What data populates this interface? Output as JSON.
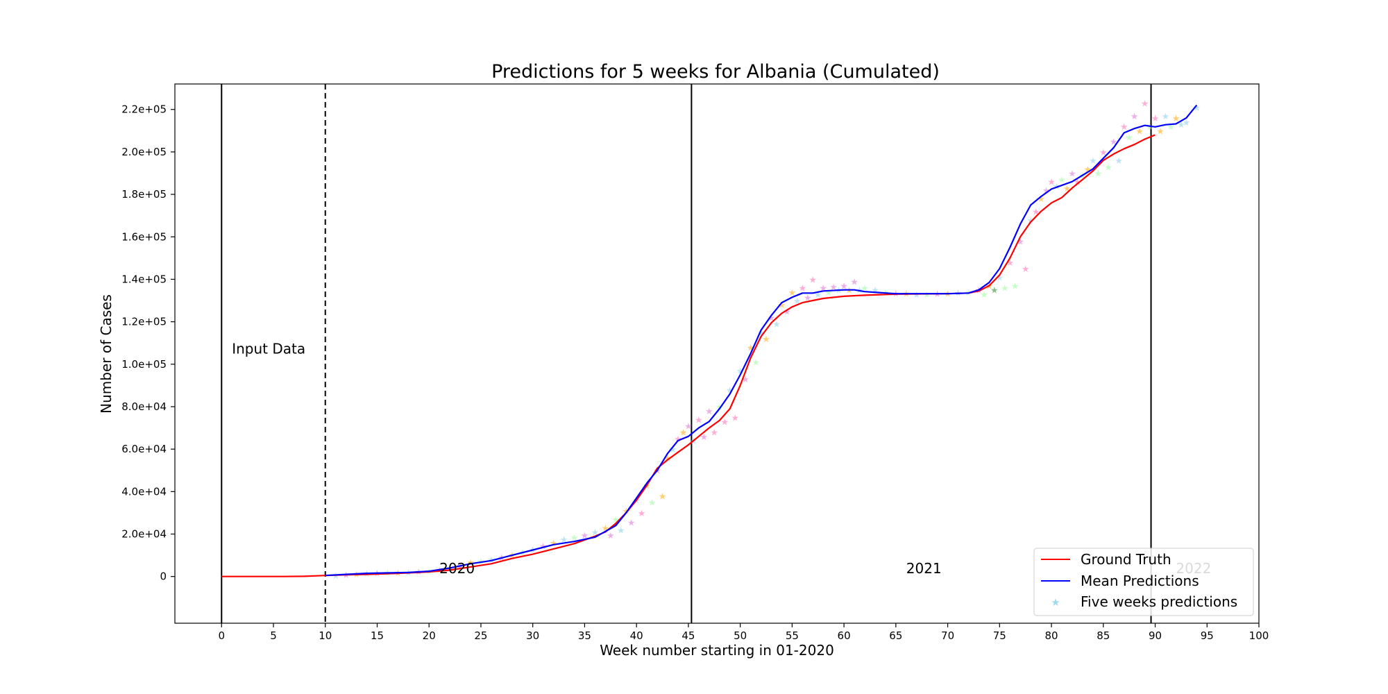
{
  "chart_data": {
    "type": "line",
    "title": "Predictions for 5 weeks for Albania (Cumulated)",
    "xlabel": "Week number starting in 01-2020",
    "ylabel": "Number of Cases",
    "xlim": [
      -4.5,
      100
    ],
    "ylim": [
      -22000,
      232000
    ],
    "x_ticks": [
      0,
      5,
      10,
      15,
      20,
      25,
      30,
      35,
      40,
      45,
      50,
      55,
      60,
      65,
      70,
      75,
      80,
      85,
      90,
      95,
      100
    ],
    "y_ticks": [
      0,
      20000,
      40000,
      60000,
      80000,
      100000,
      120000,
      140000,
      160000,
      180000,
      200000,
      220000
    ],
    "y_tick_labels": [
      "0",
      "2.0e+04",
      "4.0e+04",
      "6.0e+04",
      "8.0e+04",
      "1.0e+05",
      "1.2e+05",
      "1.4e+05",
      "1.6e+05",
      "1.8e+05",
      "2.0e+05",
      "2.2e+05"
    ],
    "grid": false,
    "legend_position": "lower-right",
    "vertical_lines": [
      {
        "x": 0,
        "style": "solid"
      },
      {
        "x": 10,
        "style": "dashed"
      },
      {
        "x": 45.3,
        "style": "solid"
      },
      {
        "x": 89.6,
        "style": "solid"
      }
    ],
    "annotations": [
      {
        "text": "Input Data",
        "x": 1,
        "y": 105000
      },
      {
        "text": "2020",
        "x": 21,
        "y": 1500
      },
      {
        "text": "2021",
        "x": 66,
        "y": 1500
      },
      {
        "text": "2022",
        "x": 92,
        "y": 1500
      }
    ],
    "series": [
      {
        "name": "Ground Truth",
        "color": "#ff0000",
        "x": [
          0,
          2,
          4,
          6,
          8,
          9,
          10,
          12,
          14,
          16,
          18,
          20,
          22,
          24,
          26,
          28,
          30,
          32,
          34,
          36,
          37,
          38,
          39,
          40,
          41,
          42,
          43,
          44,
          45,
          46,
          47,
          48,
          49,
          50,
          51,
          52,
          53,
          54,
          55,
          56,
          57,
          58,
          60,
          62,
          65,
          70,
          72,
          73,
          74,
          75,
          76,
          77,
          78,
          79,
          80,
          81,
          82,
          83,
          84,
          85,
          86,
          87,
          88,
          89,
          90
        ],
        "y": [
          0,
          0,
          0,
          0,
          100,
          300,
          500,
          800,
          1000,
          1300,
          1700,
          2200,
          3000,
          4500,
          6000,
          8500,
          10500,
          13000,
          15500,
          19000,
          21000,
          25000,
          30000,
          36000,
          43000,
          51000,
          55000,
          58500,
          62000,
          66000,
          70000,
          73500,
          79000,
          90000,
          103000,
          113000,
          119500,
          124000,
          127000,
          129000,
          130000,
          131000,
          132000,
          132500,
          133000,
          133200,
          133500,
          134500,
          137000,
          142000,
          150000,
          160000,
          167000,
          172000,
          176000,
          178500,
          183000,
          187000,
          191000,
          196000,
          199000,
          201500,
          203500,
          206000,
          208000
        ]
      },
      {
        "name": "Mean Predictions",
        "color": "#0000ff",
        "x": [
          10,
          12,
          14,
          16,
          18,
          20,
          22,
          24,
          26,
          28,
          30,
          32,
          34,
          36,
          38,
          39,
          40,
          41,
          42,
          43,
          44,
          45,
          46,
          47,
          48,
          49,
          50,
          51,
          52,
          53,
          54,
          55,
          56,
          57,
          58,
          60,
          61,
          62,
          65,
          70,
          72,
          73,
          74,
          75,
          76,
          77,
          78,
          79,
          80,
          82,
          84,
          86,
          87,
          88,
          89,
          90,
          91,
          92,
          93,
          94
        ],
        "y": [
          500,
          1000,
          1500,
          1700,
          1900,
          2500,
          4000,
          6000,
          7500,
          10000,
          12500,
          15000,
          16500,
          18500,
          24000,
          30000,
          37000,
          44000,
          50000,
          58000,
          64000,
          66000,
          70000,
          73000,
          79000,
          86000,
          95000,
          105000,
          116000,
          123000,
          129000,
          131500,
          133500,
          133500,
          134500,
          135000,
          135000,
          134200,
          133200,
          133200,
          133500,
          135000,
          138500,
          145000,
          155000,
          166000,
          175000,
          179000,
          182500,
          186000,
          192000,
          202000,
          209000,
          211000,
          212500,
          211800,
          212800,
          213200,
          216000,
          222000
        ]
      },
      {
        "name": "Five weeks predictions",
        "marker": "star",
        "color": "#87ceeb",
        "points": [
          [
            11,
            600,
            "#87ceeb"
          ],
          [
            12,
            900,
            "#da70d6"
          ],
          [
            13,
            1200,
            "#ffa500"
          ],
          [
            14,
            1500,
            "#87ceeb"
          ],
          [
            15,
            1700,
            "#da70d6"
          ],
          [
            16,
            1900,
            "#98fb98"
          ],
          [
            17,
            1800,
            "#ffa500"
          ],
          [
            18,
            2100,
            "#87ceeb"
          ],
          [
            19,
            2300,
            "#da70d6"
          ],
          [
            20,
            2500,
            "#98fb98"
          ],
          [
            21,
            3200,
            "#ffa500"
          ],
          [
            22,
            4000,
            "#87ceeb"
          ],
          [
            23,
            5200,
            "#da70d6"
          ],
          [
            24,
            6800,
            "#ffa500"
          ],
          [
            25,
            7200,
            "#98fb98"
          ],
          [
            26,
            8000,
            "#87ceeb"
          ],
          [
            27,
            9000,
            "#da70d6"
          ],
          [
            28,
            10200,
            "#ffa500"
          ],
          [
            29,
            11500,
            "#98fb98"
          ],
          [
            30,
            12800,
            "#87ceeb"
          ],
          [
            31,
            14500,
            "#da70d6"
          ],
          [
            32,
            16000,
            "#ffa500"
          ],
          [
            33,
            17500,
            "#87ceeb"
          ],
          [
            34,
            18500,
            "#98fb98"
          ],
          [
            35,
            19500,
            "#da70d6"
          ],
          [
            36,
            21000,
            "#87ceeb"
          ],
          [
            37,
            23000,
            "#ffa500"
          ],
          [
            37.5,
            19500,
            "#da70d6"
          ],
          [
            38,
            27000,
            "#98fb98"
          ],
          [
            38.5,
            22000,
            "#87ceeb"
          ],
          [
            39,
            31000,
            "#ffa500"
          ],
          [
            39.5,
            25500,
            "#da70d6"
          ],
          [
            40,
            36000,
            "#87ceeb"
          ],
          [
            40.5,
            30000,
            "#ff69b4"
          ],
          [
            41,
            43000,
            "#ffa500"
          ],
          [
            41.5,
            35000,
            "#98fb98"
          ],
          [
            42,
            50000,
            "#da70d6"
          ],
          [
            42.5,
            38000,
            "#ffa500"
          ],
          [
            43,
            56000,
            "#ffa500"
          ],
          [
            43.5,
            60000,
            "#87ceeb"
          ],
          [
            44,
            65000,
            "#ff69b4"
          ],
          [
            44.5,
            68000,
            "#ffa500"
          ],
          [
            45,
            71000,
            "#da70d6"
          ],
          [
            45.5,
            64000,
            "#87ceeb"
          ],
          [
            46,
            74000,
            "#ff69b4"
          ],
          [
            46.5,
            66000,
            "#da70d6"
          ],
          [
            47,
            78000,
            "#da70d6"
          ],
          [
            47.5,
            68000,
            "#ff69b4"
          ],
          [
            48,
            80000,
            "#98fb98"
          ],
          [
            48.5,
            73000,
            "#ff69b4"
          ],
          [
            49,
            88000,
            "#87ceeb"
          ],
          [
            49.5,
            75000,
            "#ff69b4"
          ],
          [
            50,
            97000,
            "#87ceeb"
          ],
          [
            50.5,
            93000,
            "#da70d6"
          ],
          [
            51,
            108000,
            "#ffa500"
          ],
          [
            51.5,
            101000,
            "#98fb98"
          ],
          [
            52,
            115000,
            "#87ceeb"
          ],
          [
            52.5,
            112000,
            "#ffa500"
          ],
          [
            53,
            122000,
            "#da70d6"
          ],
          [
            53.5,
            119000,
            "#87ceeb"
          ],
          [
            54,
            128000,
            "#ffa500"
          ],
          [
            54.5,
            125000,
            "#da70d6"
          ],
          [
            55,
            134000,
            "#ffa500"
          ],
          [
            55.5,
            130000,
            "#87ceeb"
          ],
          [
            56,
            136000,
            "#ff69b4"
          ],
          [
            56.5,
            131500,
            "#da70d6"
          ],
          [
            57,
            140000,
            "#ff69b4"
          ],
          [
            57.5,
            133000,
            "#87ceeb"
          ],
          [
            58,
            136000,
            "#da70d6"
          ],
          [
            58.5,
            134000,
            "#98fb98"
          ],
          [
            59,
            136500,
            "#da70d6"
          ],
          [
            59.5,
            135000,
            "#87ceeb"
          ],
          [
            60,
            137000,
            "#da70d6"
          ],
          [
            60.5,
            135000,
            "#ffa500"
          ],
          [
            61,
            139000,
            "#da70d6"
          ],
          [
            61.5,
            135000,
            "#87ceeb"
          ],
          [
            62,
            136000,
            "#98fb98"
          ],
          [
            63,
            135000,
            "#87ceeb"
          ],
          [
            64,
            134000,
            "#98fb98"
          ],
          [
            65,
            133500,
            "#da70d6"
          ],
          [
            66,
            133500,
            "#ffa500"
          ],
          [
            67,
            133000,
            "#87ceeb"
          ],
          [
            68,
            133000,
            "#98fb98"
          ],
          [
            69,
            133300,
            "#da70d6"
          ],
          [
            70,
            133400,
            "#ffa500"
          ],
          [
            71,
            133700,
            "#87ceeb"
          ],
          [
            72,
            134000,
            "#98fb98"
          ],
          [
            73,
            135000,
            "#da70d6"
          ],
          [
            73.5,
            133000,
            "#98fb98"
          ],
          [
            74,
            137000,
            "#ffa500"
          ],
          [
            74.5,
            135000,
            "#228b22"
          ],
          [
            75,
            141000,
            "#87ceeb"
          ],
          [
            75.5,
            136000,
            "#98fb98"
          ],
          [
            76,
            148000,
            "#ff69b4"
          ],
          [
            76.5,
            137000,
            "#98fb98"
          ],
          [
            77,
            158000,
            "#da70d6"
          ],
          [
            77.5,
            145000,
            "#ff69b4"
          ],
          [
            78,
            168000,
            "#87ceeb"
          ],
          [
            78.5,
            172000,
            "#ff69b4"
          ],
          [
            79,
            178000,
            "#ffa500"
          ],
          [
            79.5,
            182000,
            "#da70d6"
          ],
          [
            80,
            186000,
            "#ff69b4"
          ],
          [
            80.5,
            184000,
            "#87ceeb"
          ],
          [
            81,
            187000,
            "#98fb98"
          ],
          [
            81.5,
            183000,
            "#ffa500"
          ],
          [
            82,
            190000,
            "#da70d6"
          ],
          [
            82.5,
            186000,
            "#ff69b4"
          ],
          [
            83,
            189000,
            "#98fb98"
          ],
          [
            83.5,
            192000,
            "#ffa500"
          ],
          [
            84,
            196000,
            "#87ceeb"
          ],
          [
            84.5,
            190000,
            "#98fb98"
          ],
          [
            85,
            200000,
            "#ff69b4"
          ],
          [
            85.5,
            193000,
            "#98fb98"
          ],
          [
            86,
            205000,
            "#da70d6"
          ],
          [
            86.5,
            196000,
            "#87ceeb"
          ],
          [
            87,
            212000,
            "#ff69b4"
          ],
          [
            87.5,
            207000,
            "#98fb98"
          ],
          [
            88,
            217000,
            "#da70d6"
          ],
          [
            88.5,
            210000,
            "#ffa500"
          ],
          [
            89,
            223000,
            "#ff69b4"
          ],
          [
            89.5,
            212000,
            "#98fb98"
          ],
          [
            90,
            216000,
            "#ff69b4"
          ],
          [
            90.5,
            210000,
            "#ffa500"
          ],
          [
            91,
            217000,
            "#87ceeb"
          ],
          [
            91.5,
            212000,
            "#98fb98"
          ],
          [
            92,
            216000,
            "#ffa500"
          ],
          [
            92.5,
            213000,
            "#87ceeb"
          ],
          [
            93,
            214000,
            "#87ceeb"
          ],
          [
            94,
            221000,
            "#87ceeb"
          ]
        ]
      }
    ]
  }
}
